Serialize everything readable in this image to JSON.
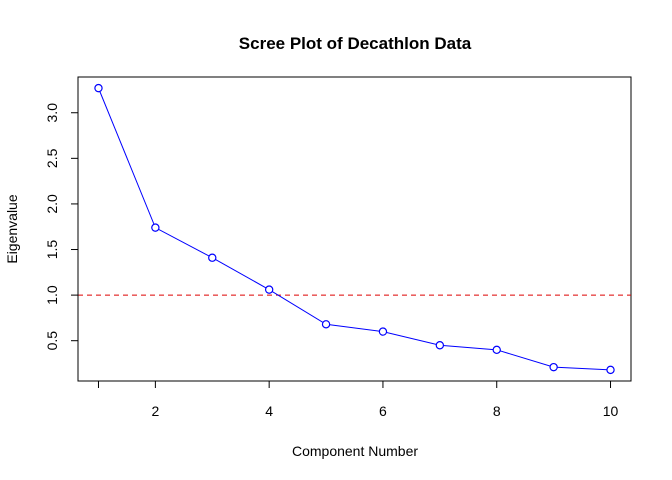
{
  "chart_data": {
    "type": "line",
    "title": "Scree Plot of Decathlon Data",
    "xlabel": "Component Number",
    "ylabel": "Eigenvalue",
    "x": [
      1,
      2,
      3,
      4,
      5,
      6,
      7,
      8,
      9,
      10
    ],
    "series": [
      {
        "values": [
          3.27,
          1.74,
          1.41,
          1.06,
          0.68,
          0.6,
          0.45,
          0.4,
          0.21,
          0.18
        ],
        "color": "#0000ff",
        "marker": "open-circle"
      }
    ],
    "reference_line": {
      "y": 1.0,
      "color": "#dd0000",
      "style": "dashed"
    },
    "x_ticks": [
      2,
      4,
      6,
      8,
      10
    ],
    "x_tick_labels": [
      "2",
      "4",
      "6",
      "8",
      "10"
    ],
    "y_ticks": [
      0.5,
      1.0,
      1.5,
      2.0,
      2.5,
      3.0
    ],
    "y_tick_labels": [
      "0.5",
      "1.0",
      "1.5",
      "2.0",
      "2.5",
      "3.0"
    ],
    "xlim": [
      0.64,
      10.36
    ],
    "ylim": [
      0.058,
      3.392
    ],
    "grid": false,
    "legend": "none"
  }
}
